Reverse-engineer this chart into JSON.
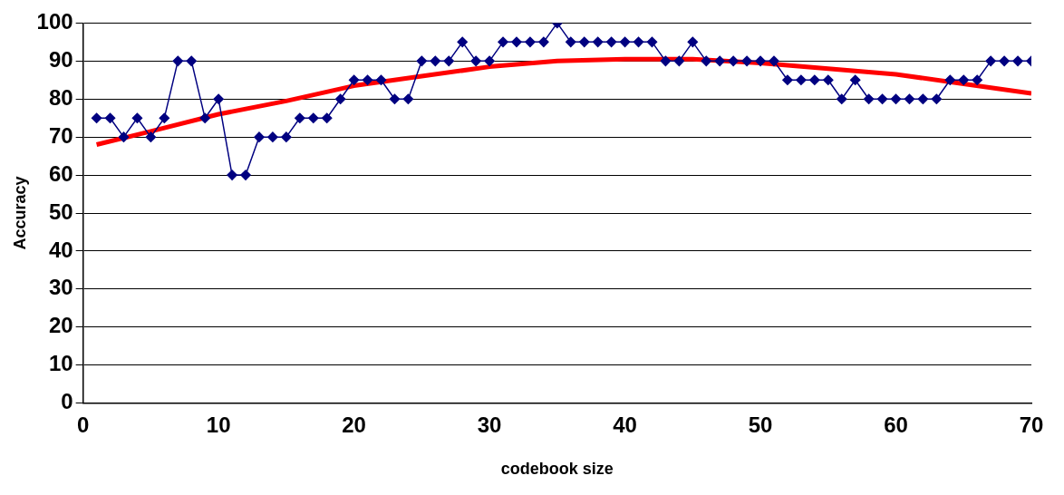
{
  "chart_data": {
    "type": "line",
    "xlabel": "codebook size",
    "ylabel": "Accuracy",
    "xlim": [
      0,
      70
    ],
    "xticks": [
      0,
      10,
      20,
      30,
      40,
      50,
      60,
      70
    ],
    "ylim": [
      0,
      100
    ],
    "yticks": [
      0,
      10,
      20,
      30,
      40,
      50,
      60,
      70,
      80,
      90,
      100
    ],
    "grid": "y",
    "legend": false,
    "series": [
      {
        "color": "#000080",
        "marker": "diamond",
        "x": [
          1,
          2,
          3,
          4,
          5,
          6,
          7,
          8,
          9,
          10,
          11,
          12,
          13,
          14,
          15,
          16,
          17,
          18,
          19,
          20,
          21,
          22,
          23,
          24,
          25,
          26,
          27,
          28,
          29,
          30,
          31,
          32,
          33,
          34,
          35,
          36,
          37,
          38,
          39,
          40,
          41,
          42,
          43,
          44,
          45,
          46,
          47,
          48,
          49,
          50,
          51,
          52,
          53,
          54,
          55,
          56,
          57,
          58,
          59,
          60,
          61,
          62,
          63,
          64,
          65,
          66,
          67,
          68,
          69,
          70
        ],
        "values": [
          75,
          75,
          70,
          75,
          70,
          75,
          90,
          90,
          75,
          80,
          60,
          60,
          70,
          70,
          70,
          75,
          75,
          75,
          80,
          85,
          85,
          85,
          80,
          80,
          90,
          90,
          90,
          95,
          90,
          90,
          95,
          95,
          95,
          95,
          100,
          95,
          95,
          95,
          95,
          95,
          95,
          95,
          90,
          90,
          95,
          90,
          90,
          90,
          90,
          90,
          90,
          85,
          85,
          85,
          85,
          80,
          85,
          80,
          80,
          80,
          80,
          80,
          80,
          85,
          85,
          85,
          90,
          90,
          90,
          90
        ]
      },
      {
        "type": "line",
        "color": "#ff0000",
        "marker": "none",
        "x": [
          1,
          5,
          10,
          15,
          20,
          25,
          30,
          35,
          40,
          45,
          50,
          55,
          60,
          65,
          70
        ],
        "values": [
          68,
          71.5,
          76,
          79.5,
          83.5,
          86,
          88.5,
          90,
          90.5,
          90.5,
          89.5,
          88,
          86.5,
          84,
          81.5
        ]
      }
    ]
  }
}
